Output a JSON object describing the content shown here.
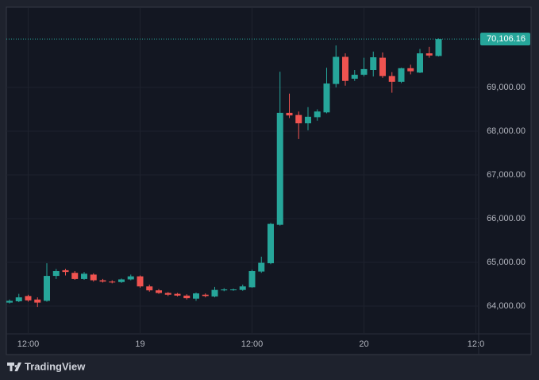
{
  "chart_data": {
    "type": "candlestick",
    "brand": "TradingView",
    "categories": [
      null,
      null,
      "12:00",
      null,
      null,
      null,
      null,
      null,
      null,
      null,
      null,
      null,
      null,
      null,
      "19",
      null,
      null,
      null,
      null,
      null,
      null,
      null,
      null,
      null,
      null,
      null,
      "12:00",
      null,
      null,
      null,
      null,
      null,
      null,
      null,
      null,
      null,
      null,
      null,
      "20",
      null,
      null,
      null,
      null,
      null,
      null,
      null,
      null,
      null,
      null,
      null,
      "12:0"
    ],
    "series": {
      "open": [
        64080,
        64110,
        64230,
        64150,
        64120,
        64690,
        64820,
        64760,
        64620,
        64720,
        64590,
        64560,
        64550,
        64610,
        64680,
        64450,
        64360,
        64300,
        64280,
        64240,
        64170,
        64260,
        64220,
        64360,
        64370,
        64370,
        64430,
        64790,
        64980,
        65860,
        68420,
        68370,
        68180,
        68320,
        68430,
        69080,
        69700,
        69200,
        69290,
        69400,
        69680,
        69260,
        69130,
        69440,
        69340,
        69780,
        69720,
        null,
        null,
        null,
        null
      ],
      "high": [
        64150,
        64280,
        64260,
        64200,
        64980,
        64850,
        64850,
        64800,
        64780,
        64750,
        64620,
        64590,
        64630,
        64720,
        64700,
        64490,
        64390,
        64320,
        64300,
        64270,
        64310,
        64290,
        64440,
        64410,
        64400,
        64490,
        64830,
        65130,
        65900,
        69360,
        68860,
        68450,
        68550,
        68500,
        69450,
        69960,
        69780,
        69400,
        69680,
        69820,
        69800,
        69350,
        69450,
        69520,
        69880,
        69930,
        70120,
        null,
        null,
        null,
        null
      ],
      "low": [
        64060,
        64090,
        64100,
        63980,
        64100,
        64620,
        64700,
        64600,
        64600,
        64560,
        64540,
        64520,
        64530,
        64590,
        64420,
        64330,
        64280,
        64230,
        64220,
        64150,
        64120,
        64200,
        64200,
        64340,
        64350,
        64350,
        64420,
        64760,
        64960,
        65840,
        68300,
        67820,
        68020,
        68240,
        68410,
        69000,
        69040,
        69150,
        69250,
        69250,
        69220,
        68880,
        69100,
        69300,
        69330,
        69680,
        69710,
        null,
        null,
        null,
        null
      ],
      "close": [
        64120,
        64200,
        64130,
        64080,
        64690,
        64800,
        64780,
        64620,
        64740,
        64590,
        64560,
        64540,
        64610,
        64680,
        64450,
        64360,
        64300,
        64260,
        64240,
        64180,
        64290,
        64230,
        64370,
        64380,
        64380,
        64450,
        64800,
        64990,
        65880,
        68420,
        68360,
        68180,
        68330,
        68450,
        69090,
        69700,
        69150,
        69290,
        69420,
        69690,
        69260,
        69130,
        69440,
        69370,
        69780,
        69730,
        70106.16,
        null,
        null,
        null,
        null
      ]
    },
    "up_color": "#26a69a",
    "down_color": "#ef5350",
    "ylim": [
      63364,
      70818
    ],
    "yticks": [
      {
        "value": 64000,
        "label": "64,000.00"
      },
      {
        "value": 65000,
        "label": "65,000.00"
      },
      {
        "value": 66000,
        "label": "66,000.00"
      },
      {
        "value": 67000,
        "label": "67,000.00"
      },
      {
        "value": 68000,
        "label": "68,000.00"
      },
      {
        "value": 69000,
        "label": "69,000.00"
      }
    ],
    "last_price": {
      "value": 70106.16,
      "label": "70,106.16"
    },
    "grid": true
  }
}
